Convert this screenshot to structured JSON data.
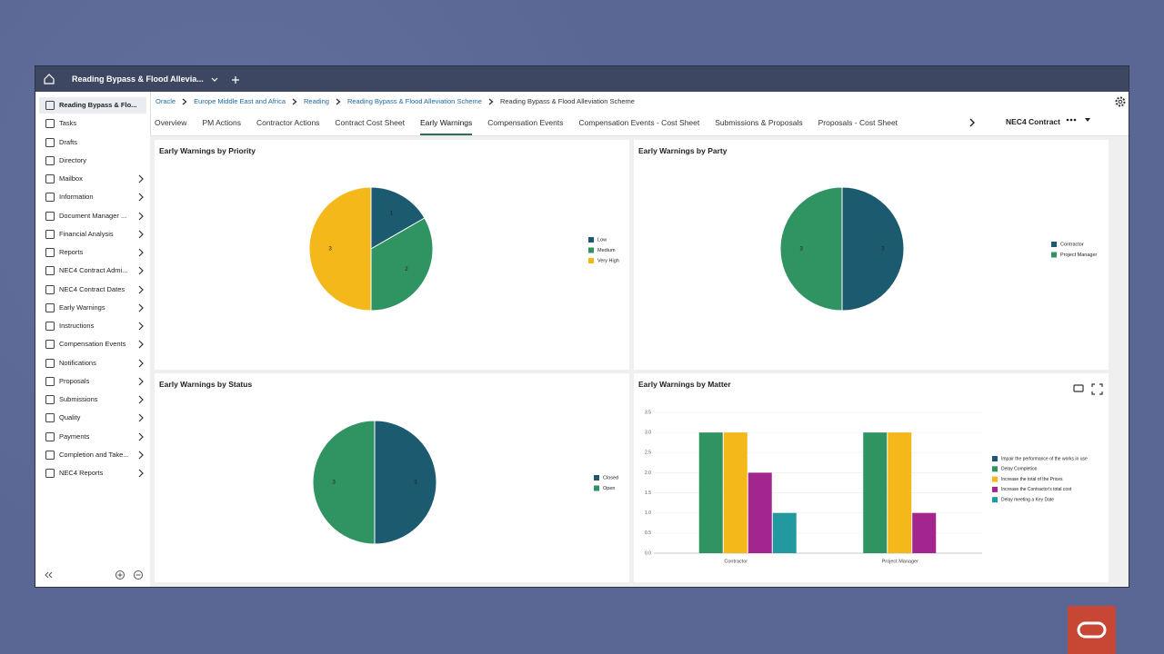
{
  "window_tab": {
    "title": "Reading Bypass & Flood Allevia..."
  },
  "sidebar": {
    "items": [
      {
        "label": "Reading Bypass & Flo...",
        "selected": true
      },
      {
        "label": "Tasks"
      },
      {
        "label": "Drafts"
      },
      {
        "label": "Directory"
      },
      {
        "label": "Mailbox",
        "expandable": true
      },
      {
        "label": "Information",
        "expandable": true
      },
      {
        "label": "Document Manager ...",
        "expandable": true
      },
      {
        "label": "Financial Analysis",
        "expandable": true
      },
      {
        "label": "Reports",
        "expandable": true
      },
      {
        "label": "NEC4 Contract Admi...",
        "expandable": true
      },
      {
        "label": "NEC4 Contract Dates",
        "expandable": true
      },
      {
        "label": "Early Warnings",
        "expandable": true
      },
      {
        "label": "Instructions",
        "expandable": true
      },
      {
        "label": "Compensation Events",
        "expandable": true
      },
      {
        "label": "Notifications",
        "expandable": true
      },
      {
        "label": "Proposals",
        "expandable": true
      },
      {
        "label": "Submissions",
        "expandable": true
      },
      {
        "label": "Quality",
        "expandable": true
      },
      {
        "label": "Payments",
        "expandable": true
      },
      {
        "label": "Completion and Take...",
        "expandable": true
      },
      {
        "label": "NEC4 Reports",
        "expandable": true
      }
    ]
  },
  "breadcrumb": [
    "Oracle",
    "Europe Middle East and Africa",
    "Reading",
    "Reading Bypass & Flood Alleviation Scheme",
    "Reading Bypass & Flood Alleviation Scheme"
  ],
  "nav_tabs": [
    {
      "label": "Overview"
    },
    {
      "label": "PM Actions"
    },
    {
      "label": "Contractor Actions"
    },
    {
      "label": "Contract Cost Sheet"
    },
    {
      "label": "Early Warnings",
      "selected": true
    },
    {
      "label": "Compensation Events"
    },
    {
      "label": "Compensation Events - Cost Sheet"
    },
    {
      "label": "Submissions & Proposals"
    },
    {
      "label": "Proposals - Cost Sheet"
    }
  ],
  "contract_menu": "NEC4 Contract",
  "charts": [
    {
      "type": "pie",
      "title": "Early Warnings by Priority",
      "categories": [
        "Low",
        "Medium",
        "Very High"
      ],
      "values": [
        1,
        2,
        3
      ],
      "colors": [
        "#1b5a6f",
        "#2f9461",
        "#f5b81b"
      ]
    },
    {
      "type": "pie",
      "title": "Early Warnings by Party",
      "categories": [
        "Contractor",
        "Project Manager"
      ],
      "values": [
        3,
        3
      ],
      "colors": [
        "#1b5a6f",
        "#2f9461"
      ]
    },
    {
      "type": "pie",
      "title": "Early Warnings by Status",
      "categories": [
        "Closed",
        "Open"
      ],
      "values": [
        3,
        3
      ],
      "colors": [
        "#1b5a6f",
        "#2f9461"
      ]
    },
    {
      "type": "bar",
      "title": "Early Warnings by Matter",
      "categories": [
        "Contractor",
        "Project Manager"
      ],
      "series": [
        {
          "name": "Impair the performance of the works in use",
          "color": "#1b5a6f",
          "values": [
            0,
            0
          ]
        },
        {
          "name": "Delay Completion",
          "color": "#2f9461",
          "values": [
            3,
            3
          ]
        },
        {
          "name": "Increase the total of the Prices",
          "color": "#f5b81b",
          "values": [
            3,
            3
          ]
        },
        {
          "name": "Increase the Contractor's total cost",
          "color": "#a3268f",
          "values": [
            2,
            1
          ]
        },
        {
          "name": "Delay meeting a Key Date",
          "color": "#22999f",
          "values": [
            1,
            0
          ]
        }
      ],
      "ylim": [
        0,
        3.5
      ],
      "yticks": [
        {
          "value": 0,
          "label": "0.0"
        },
        {
          "value": 0.5,
          "label": "0.5"
        },
        {
          "value": 1,
          "label": "1.0"
        },
        {
          "value": 1.5,
          "label": "1.5"
        },
        {
          "value": 2,
          "label": "2.0"
        },
        {
          "value": 2.5,
          "label": "2.5"
        },
        {
          "value": 3,
          "label": "3.0"
        },
        {
          "value": 3.5,
          "label": "3.5"
        }
      ],
      "grid": true
    }
  ]
}
